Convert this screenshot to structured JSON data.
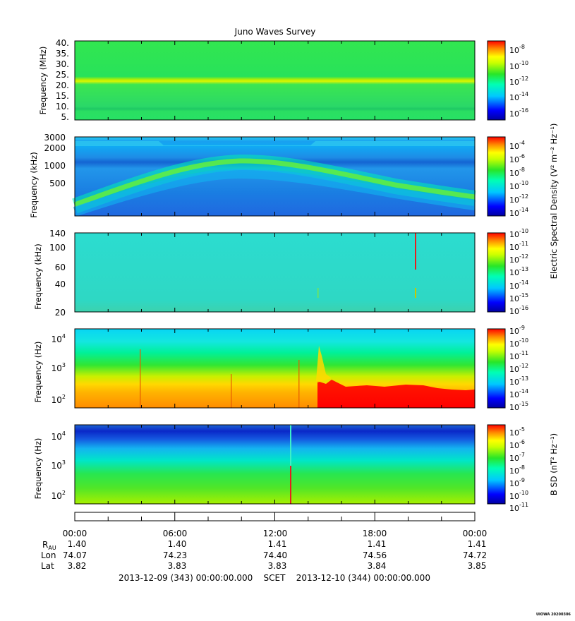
{
  "title": "Juno Waves Survey",
  "footer_stamp": "UIOWA 20200306",
  "time_axis": {
    "ticks": [
      "00:00",
      "06:00",
      "12:00",
      "18:00",
      "00:00"
    ],
    "rows": [
      {
        "label": "R_AU",
        "values": [
          "1.40",
          "1.40",
          "1.41",
          "1.41",
          "1.41"
        ]
      },
      {
        "label": "Lon",
        "values": [
          "74.07",
          "74.23",
          "74.40",
          "74.56",
          "74.72"
        ]
      },
      {
        "label": "Lat",
        "values": [
          "3.82",
          "3.83",
          "3.83",
          "3.84",
          "3.85"
        ]
      }
    ],
    "range_line": "2013-12-09 (343) 00:00:00.000    SCET    2013-12-10 (344) 00:00:00.000"
  },
  "colorbar_labels": {
    "electric": "Electric Spectral Density (V² m⁻² Hz⁻¹)",
    "magnetic": "B SD (nT² Hz⁻¹)"
  },
  "chart_data": [
    {
      "type": "heatmap",
      "ylabel": "Frequency (MHz)",
      "yticks": [
        "40.",
        "35.",
        "30.",
        "25.",
        "20.",
        "15.",
        "10.",
        "5."
      ],
      "colorbar_ticks": [
        "10-8",
        "10-10",
        "10-12",
        "10-14",
        "10-16"
      ],
      "colorbar_exponents": [
        "-8",
        "-10",
        "-12",
        "-14",
        "-16"
      ],
      "description_levels": {
        "background": "green",
        "band_20MHz": "yellow",
        "band_9MHz": "darker green"
      }
    },
    {
      "type": "heatmap",
      "ylabel": "Frequency (kHz)",
      "yticks": [
        "3000",
        "2000",
        "1000",
        "500"
      ],
      "colorbar_ticks": [
        "10-4",
        "10-6",
        "10-8",
        "10-10",
        "10-12",
        "10-14"
      ],
      "colorbar_exponents": [
        "-4",
        "-6",
        "-8",
        "-10",
        "-12",
        "-14"
      ]
    },
    {
      "type": "heatmap",
      "ylabel": "Frequency (kHz)",
      "yticks": [
        "140",
        "100",
        "60",
        "40",
        "20"
      ],
      "colorbar_ticks": [
        "10-10",
        "10-11",
        "10-12",
        "10-13",
        "10-14",
        "10-15",
        "10-16"
      ],
      "colorbar_exponents": [
        "-10",
        "-11",
        "-12",
        "-13",
        "-14",
        "-15",
        "-16"
      ]
    },
    {
      "type": "heatmap",
      "ylabel": "Frequency (Hz)",
      "yticks": [
        "10^4",
        "10^3",
        "10^2"
      ],
      "colorbar_ticks": [
        "10-9",
        "10-10",
        "10-11",
        "10-12",
        "10-13",
        "10-14",
        "10-15"
      ],
      "colorbar_exponents": [
        "-9",
        "-10",
        "-11",
        "-12",
        "-13",
        "-14",
        "-15"
      ]
    },
    {
      "type": "heatmap",
      "ylabel": "Frequency (Hz)",
      "yticks": [
        "10^4",
        "10^3",
        "10^2"
      ],
      "colorbar_ticks": [
        "10-5",
        "10-6",
        "10-7",
        "10-8",
        "10-9",
        "10-10",
        "10-11"
      ],
      "colorbar_exponents": [
        "-5",
        "-6",
        "-7",
        "-8",
        "-9",
        "-10",
        "-11"
      ]
    }
  ]
}
